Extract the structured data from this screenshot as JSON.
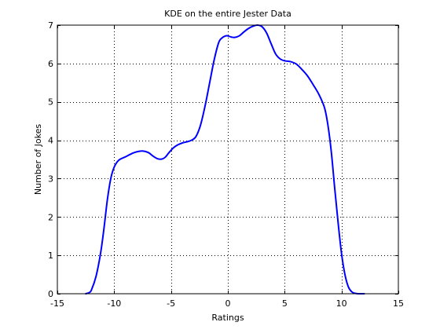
{
  "chart_data": {
    "type": "line",
    "title": "KDE on the entire Jester Data",
    "xlabel": "Ratings",
    "ylabel": "Number of Jokes",
    "xlim": [
      -15,
      15
    ],
    "ylim": [
      0,
      7
    ],
    "xticks": [
      -15,
      -10,
      -5,
      0,
      5,
      10,
      15
    ],
    "yticks": [
      0,
      1,
      2,
      3,
      4,
      5,
      6,
      7
    ],
    "xtick_labels": [
      "-15",
      "-10",
      "-5",
      "0",
      "5",
      "10",
      "15"
    ],
    "ytick_labels": [
      "0",
      "1",
      "2",
      "3",
      "4",
      "5",
      "6",
      "7"
    ],
    "grid": true,
    "box": true,
    "line_color": "#0000ff",
    "series": [
      {
        "x": [
          -12.5,
          -12.2,
          -12.0,
          -11.6,
          -11.2,
          -10.9,
          -10.6,
          -10.3,
          -10.0,
          -9.6,
          -9.0,
          -8.4,
          -8.0,
          -7.5,
          -7.0,
          -6.6,
          -6.2,
          -5.8,
          -5.5,
          -5.2,
          -4.8,
          -4.4,
          -4.0,
          -3.6,
          -3.2,
          -2.8,
          -2.4,
          -2.0,
          -1.6,
          -1.2,
          -0.8,
          -0.5,
          -0.2,
          0.0,
          0.3,
          0.6,
          1.0,
          1.4,
          1.8,
          2.2,
          2.6,
          3.0,
          3.4,
          3.8,
          4.2,
          4.6,
          5.0,
          5.5,
          6.0,
          6.5,
          7.0,
          7.5,
          8.0,
          8.5,
          8.8,
          9.1,
          9.4,
          9.7,
          10.0,
          10.3,
          10.6,
          10.9,
          11.2,
          11.5,
          11.8,
          12.0
        ],
        "y": [
          0.0,
          0.03,
          0.1,
          0.45,
          1.05,
          1.7,
          2.45,
          3.0,
          3.3,
          3.48,
          3.57,
          3.66,
          3.7,
          3.72,
          3.68,
          3.59,
          3.52,
          3.51,
          3.56,
          3.67,
          3.8,
          3.88,
          3.93,
          3.96,
          4.0,
          4.1,
          4.4,
          4.9,
          5.5,
          6.1,
          6.55,
          6.67,
          6.72,
          6.72,
          6.69,
          6.68,
          6.72,
          6.82,
          6.91,
          6.97,
          7.0,
          6.96,
          6.8,
          6.52,
          6.25,
          6.12,
          6.07,
          6.05,
          5.99,
          5.85,
          5.68,
          5.45,
          5.2,
          4.85,
          4.4,
          3.7,
          2.75,
          1.85,
          1.05,
          0.5,
          0.18,
          0.05,
          0.01,
          0.0,
          0.0,
          0.0
        ]
      }
    ]
  }
}
